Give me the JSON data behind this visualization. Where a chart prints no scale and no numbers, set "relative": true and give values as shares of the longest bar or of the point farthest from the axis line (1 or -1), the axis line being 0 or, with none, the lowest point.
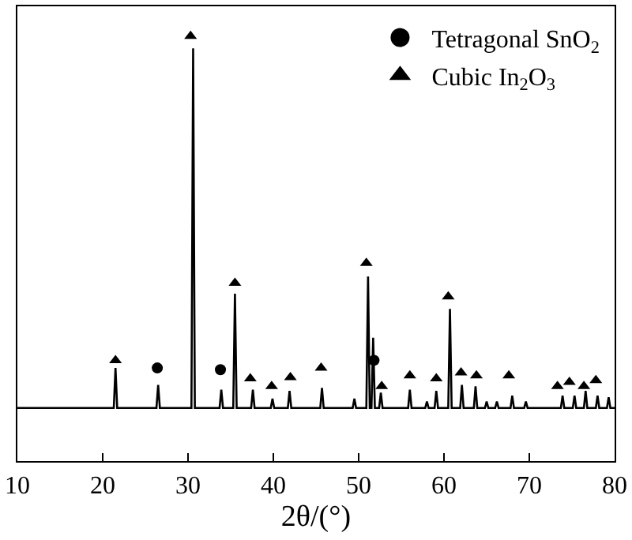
{
  "chart_data": {
    "type": "line",
    "relative": true,
    "xlabel": "2θ/(°)",
    "xlim": [
      10,
      80
    ],
    "xticks": [
      10,
      20,
      30,
      40,
      50,
      60,
      70,
      80
    ],
    "tick_labels": "x",
    "legend": "top right",
    "series": [
      {
        "color": "#000000",
        "line_style": "solid",
        "x": [
          10,
          21.3,
          21.5,
          21.7,
          26.3,
          26.5,
          26.7,
          30.4,
          30.6,
          30.8,
          33.7,
          33.9,
          34.1,
          35.3,
          35.5,
          35.7,
          37.4,
          37.6,
          37.8,
          39.7,
          39.9,
          40.1,
          41.7,
          41.9,
          42.1,
          45.5,
          45.7,
          45.9,
          49.3,
          49.5,
          49.7,
          50.9,
          51.1,
          51.3,
          51.5,
          51.7,
          51.9,
          52.4,
          52.6,
          52.8,
          55.8,
          56.0,
          56.2,
          57.8,
          58.0,
          58.2,
          58.9,
          59.1,
          59.3,
          60.5,
          60.7,
          60.9,
          61.9,
          62.1,
          62.3,
          63.5,
          63.7,
          63.9,
          64.8,
          65.0,
          65.2,
          66.0,
          66.2,
          66.4,
          67.8,
          68.0,
          68.2,
          69.4,
          69.6,
          69.8,
          73.7,
          73.9,
          74.1,
          75.1,
          75.3,
          75.5,
          76.4,
          76.6,
          76.8,
          77.8,
          78.0,
          78.2,
          79.1,
          79.3,
          79.5,
          80
        ],
        "values": [
          0.125,
          0.125,
          0.219,
          0.125,
          0.125,
          0.179,
          0.125,
          0.125,
          0.971,
          0.125,
          0.125,
          0.168,
          0.125,
          0.125,
          0.394,
          0.125,
          0.125,
          0.168,
          0.125,
          0.125,
          0.147,
          0.125,
          0.125,
          0.165,
          0.125,
          0.125,
          0.172,
          0.125,
          0.125,
          0.147,
          0.125,
          0.125,
          0.434,
          0.125,
          0.125,
          0.29,
          0.125,
          0.125,
          0.161,
          0.125,
          0.125,
          0.168,
          0.125,
          0.125,
          0.14,
          0.125,
          0.125,
          0.165,
          0.125,
          0.125,
          0.358,
          0.125,
          0.125,
          0.179,
          0.125,
          0.125,
          0.176,
          0.125,
          0.125,
          0.14,
          0.125,
          0.125,
          0.14,
          0.125,
          0.125,
          0.154,
          0.125,
          0.125,
          0.14,
          0.125,
          0.125,
          0.154,
          0.125,
          0.125,
          0.154,
          0.125,
          0.125,
          0.165,
          0.125,
          0.125,
          0.154,
          0.125,
          0.125,
          0.15,
          0.125,
          0.125
        ]
      },
      {
        "type": "scatter",
        "name": "Tetragonal SnO$_{2}$",
        "color": "#000000",
        "marker": "circle",
        "x": [
          26.4,
          33.8,
          51.8
        ],
        "values": [
          0.219,
          0.215,
          0.237
        ]
      },
      {
        "type": "scatter",
        "name": "Cubic In$_{2}$O$_{3}$",
        "color": "#000000",
        "marker": "triangle",
        "x": [
          21.5,
          30.3,
          35.5,
          37.3,
          39.8,
          42.0,
          45.6,
          50.9,
          52.7,
          56.0,
          59.1,
          60.5,
          62.0,
          63.8,
          67.6,
          73.3,
          74.7,
          76.4,
          77.8
        ],
        "values": [
          0.237,
          1.0,
          0.419,
          0.194,
          0.176,
          0.197,
          0.219,
          0.466,
          0.176,
          0.201,
          0.194,
          0.387,
          0.208,
          0.201,
          0.201,
          0.176,
          0.186,
          0.176,
          0.19
        ]
      }
    ]
  }
}
